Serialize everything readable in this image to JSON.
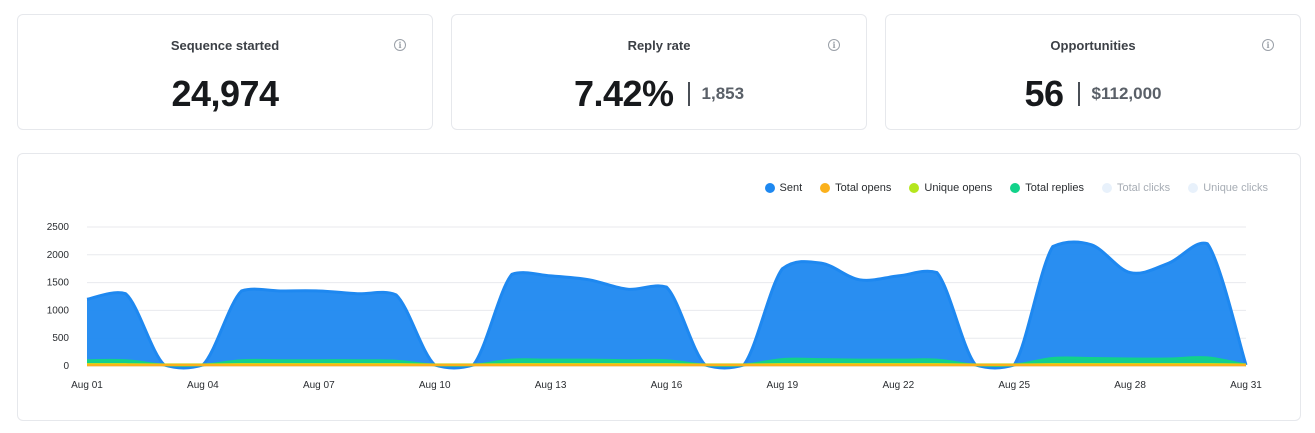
{
  "stats": [
    {
      "title": "Sequence started",
      "value": "24,974",
      "secondary": ""
    },
    {
      "title": "Reply rate",
      "value": "7.42%",
      "secondary": "1,853"
    },
    {
      "title": "Opportunities",
      "value": "56",
      "secondary": "$112,000"
    }
  ],
  "info_icon_glyph": "i",
  "chart_data": {
    "type": "area",
    "x": [
      "Aug 01",
      "Aug 02",
      "Aug 03",
      "Aug 04",
      "Aug 05",
      "Aug 06",
      "Aug 07",
      "Aug 08",
      "Aug 09",
      "Aug 10",
      "Aug 11",
      "Aug 12",
      "Aug 13",
      "Aug 14",
      "Aug 15",
      "Aug 16",
      "Aug 17",
      "Aug 18",
      "Aug 19",
      "Aug 20",
      "Aug 21",
      "Aug 22",
      "Aug 23",
      "Aug 24",
      "Aug 25",
      "Aug 26",
      "Aug 27",
      "Aug 28",
      "Aug 29",
      "Aug 30",
      "Aug 31"
    ],
    "x_tick_labels": [
      "Aug 01",
      "Aug 04",
      "Aug 07",
      "Aug 10",
      "Aug 13",
      "Aug 16",
      "Aug 19",
      "Aug 22",
      "Aug 25",
      "Aug 28",
      "Aug 31"
    ],
    "y_ticks": [
      0,
      500,
      1000,
      1500,
      2000,
      2500
    ],
    "ylim": [
      0,
      2500
    ],
    "series": [
      {
        "name": "Sent",
        "color": "#1e88f0",
        "values": [
          1200,
          1300,
          0,
          0,
          1350,
          1350,
          1350,
          1300,
          1280,
          0,
          0,
          1650,
          1620,
          1550,
          1380,
          1420,
          0,
          0,
          1750,
          1850,
          1550,
          1620,
          1680,
          0,
          0,
          2150,
          2180,
          1680,
          1850,
          2200,
          0
        ]
      },
      {
        "name": "Total opens",
        "color": "#fbb11c",
        "values": [
          0,
          0,
          0,
          0,
          0,
          0,
          0,
          0,
          0,
          0,
          0,
          0,
          0,
          0,
          0,
          0,
          0,
          0,
          0,
          0,
          0,
          0,
          0,
          0,
          0,
          0,
          0,
          0,
          0,
          0,
          0
        ]
      },
      {
        "name": "Unique opens",
        "color": "#b5e61d",
        "values": [
          35,
          35,
          30,
          30,
          35,
          35,
          35,
          35,
          35,
          30,
          30,
          35,
          35,
          35,
          35,
          35,
          30,
          30,
          35,
          35,
          35,
          35,
          35,
          30,
          30,
          35,
          35,
          35,
          35,
          35,
          30
        ]
      },
      {
        "name": "Total replies",
        "color": "#12d28a",
        "values": [
          100,
          100,
          0,
          0,
          100,
          100,
          100,
          100,
          90,
          0,
          0,
          110,
          110,
          110,
          100,
          100,
          0,
          0,
          120,
          120,
          110,
          110,
          110,
          0,
          0,
          140,
          140,
          130,
          130,
          150,
          0
        ]
      },
      {
        "name": "Total clicks",
        "color": "#e8f1fb",
        "values": [
          0,
          0,
          0,
          0,
          0,
          0,
          0,
          0,
          0,
          0,
          0,
          0,
          0,
          0,
          0,
          0,
          0,
          0,
          0,
          0,
          0,
          0,
          0,
          0,
          0,
          0,
          0,
          0,
          0,
          0,
          0
        ]
      },
      {
        "name": "Unique clicks",
        "color": "#e8f1fb",
        "values": [
          0,
          0,
          0,
          0,
          0,
          0,
          0,
          0,
          0,
          0,
          0,
          0,
          0,
          0,
          0,
          0,
          0,
          0,
          0,
          0,
          0,
          0,
          0,
          0,
          0,
          0,
          0,
          0,
          0,
          0,
          0
        ]
      }
    ],
    "legend_placement": "top-right",
    "grid": true
  }
}
